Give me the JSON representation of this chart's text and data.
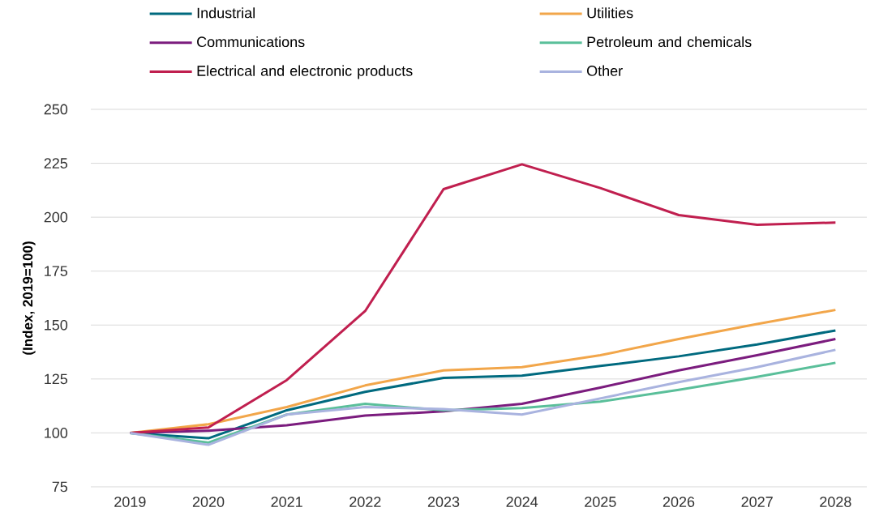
{
  "chart_data": {
    "type": "line",
    "ylabel": "(Index, 2019=100)",
    "categories": [
      "2019",
      "2020",
      "2021",
      "2022",
      "2023",
      "2024",
      "2025",
      "2026",
      "2027",
      "2028"
    ],
    "series": [
      {
        "name": "Industrial",
        "color": "#006a7f",
        "values": [
          100,
          97.5,
          110.5,
          119,
          125.5,
          126.5,
          131,
          135.5,
          141,
          147.5
        ]
      },
      {
        "name": "Utilities",
        "color": "#f2a64a",
        "values": [
          100,
          104,
          112,
          122,
          129,
          130.5,
          136,
          143.5,
          150.5,
          157
        ]
      },
      {
        "name": "Communications",
        "color": "#7b1c7e",
        "values": [
          100,
          101,
          103.5,
          108,
          110,
          113.5,
          121,
          129,
          136,
          143.5
        ]
      },
      {
        "name": "Petroleum and chemicals",
        "color": "#5abf9a",
        "values": [
          100,
          95.5,
          108.5,
          113.5,
          110.5,
          111.5,
          114.5,
          120,
          126,
          132.5
        ]
      },
      {
        "name": "Electrical and electronic products",
        "color": "#c01f4f",
        "values": [
          100,
          102.5,
          124.5,
          156.5,
          213,
          224.5,
          213.5,
          201,
          196.5,
          197.5
        ]
      },
      {
        "name": "Other",
        "color": "#a9b3df",
        "values": [
          100,
          94.5,
          108.5,
          112,
          111,
          108.5,
          116,
          123.5,
          130.5,
          138.5
        ]
      }
    ],
    "ylim": [
      75,
      250
    ],
    "yticks": [
      75,
      100,
      125,
      150,
      175,
      200,
      225,
      250
    ],
    "grid": "y",
    "legend": "top",
    "line_style": "solid"
  }
}
